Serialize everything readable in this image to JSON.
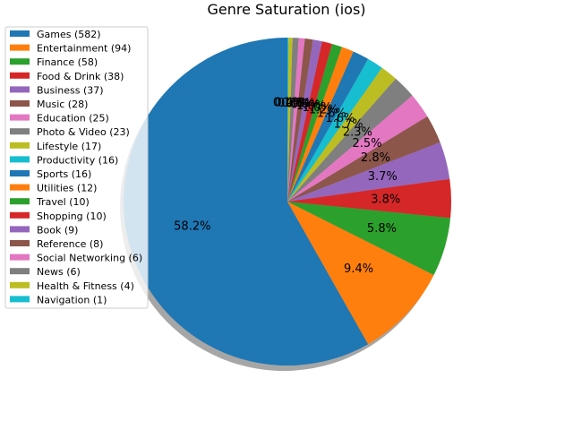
{
  "chart_data": {
    "type": "pie",
    "title": "Genre Saturation (ios)",
    "start_angle_deg": 90,
    "counterclockwise": true,
    "shadow": true,
    "label_format": "percent_1dp",
    "legend_position": "upper-left",
    "slices": [
      {
        "label": "Games (582)",
        "value": 582,
        "pct_label": "58.2%",
        "color": "#1f77b4"
      },
      {
        "label": "Entertainment (94)",
        "value": 94,
        "pct_label": "9.4%",
        "color": "#ff7f0e"
      },
      {
        "label": "Finance (58)",
        "value": 58,
        "pct_label": "5.8%",
        "color": "#2ca02c"
      },
      {
        "label": "Food & Drink (38)",
        "value": 38,
        "pct_label": "3.8%",
        "color": "#d62728"
      },
      {
        "label": "Business (37)",
        "value": 37,
        "pct_label": "3.7%",
        "color": "#9467bd"
      },
      {
        "label": "Music (28)",
        "value": 28,
        "pct_label": "2.8%",
        "color": "#8c564b"
      },
      {
        "label": "Education (25)",
        "value": 25,
        "pct_label": "2.5%",
        "color": "#e377c2"
      },
      {
        "label": "Photo & Video (23)",
        "value": 23,
        "pct_label": "2.3%",
        "color": "#7f7f7f"
      },
      {
        "label": "Lifestyle (17)",
        "value": 17,
        "pct_label": "1.7%",
        "color": "#bcbd22"
      },
      {
        "label": "Productivity (16)",
        "value": 16,
        "pct_label": "1.6%",
        "color": "#17becf"
      },
      {
        "label": "Sports (16)",
        "value": 16,
        "pct_label": "1.6%",
        "color": "#1f77b4"
      },
      {
        "label": "Utilities (12)",
        "value": 12,
        "pct_label": "1.2%",
        "color": "#ff7f0e"
      },
      {
        "label": "Travel (10)",
        "value": 10,
        "pct_label": "1.0%",
        "color": "#2ca02c"
      },
      {
        "label": "Shopping (10)",
        "value": 10,
        "pct_label": "1.0%",
        "color": "#d62728"
      },
      {
        "label": "Book (9)",
        "value": 9,
        "pct_label": "0.9%",
        "color": "#9467bd"
      },
      {
        "label": "Reference (8)",
        "value": 8,
        "pct_label": "0.8%",
        "color": "#8c564b"
      },
      {
        "label": "Social Networking (6)",
        "value": 6,
        "pct_label": "0.6%",
        "color": "#e377c2"
      },
      {
        "label": "News (6)",
        "value": 6,
        "pct_label": "0.6%",
        "color": "#7f7f7f"
      },
      {
        "label": "Health & Fitness (4)",
        "value": 4,
        "pct_label": "0.4%",
        "color": "#bcbd22"
      },
      {
        "label": "Navigation (1)",
        "value": 1,
        "pct_label": "0.1%",
        "color": "#17becf"
      }
    ]
  }
}
